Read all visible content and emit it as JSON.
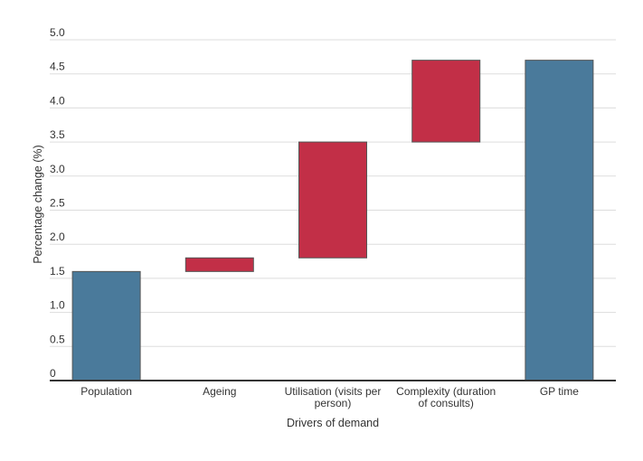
{
  "chart_data": {
    "type": "waterfall",
    "xlabel": "Drivers of demand",
    "ylabel": "Percentage change (%)",
    "ylim": [
      0,
      5.0
    ],
    "yticks": [
      "0",
      "0.5",
      "1.0",
      "1.5",
      "2.0",
      "2.5",
      "3.0",
      "3.5",
      "4.0",
      "4.5",
      "5.0"
    ],
    "grid": true,
    "categories": [
      [
        "Population"
      ],
      [
        "Ageing"
      ],
      [
        "Utilisation (visits per",
        "person)"
      ],
      [
        "Complexity (duration",
        "of consults)"
      ],
      [
        "GP time"
      ]
    ],
    "bars": [
      {
        "start": 0,
        "end": 1.6,
        "kind": "total"
      },
      {
        "start": 1.6,
        "end": 1.8,
        "kind": "increase"
      },
      {
        "start": 1.8,
        "end": 3.5,
        "kind": "increase"
      },
      {
        "start": 3.5,
        "end": 4.7,
        "kind": "increase"
      },
      {
        "start": 0,
        "end": 4.7,
        "kind": "total"
      }
    ],
    "colors": {
      "total": "#4a7a9b",
      "increase": "#c22f47",
      "grid": "#dddddd",
      "axis": "#333333"
    }
  }
}
